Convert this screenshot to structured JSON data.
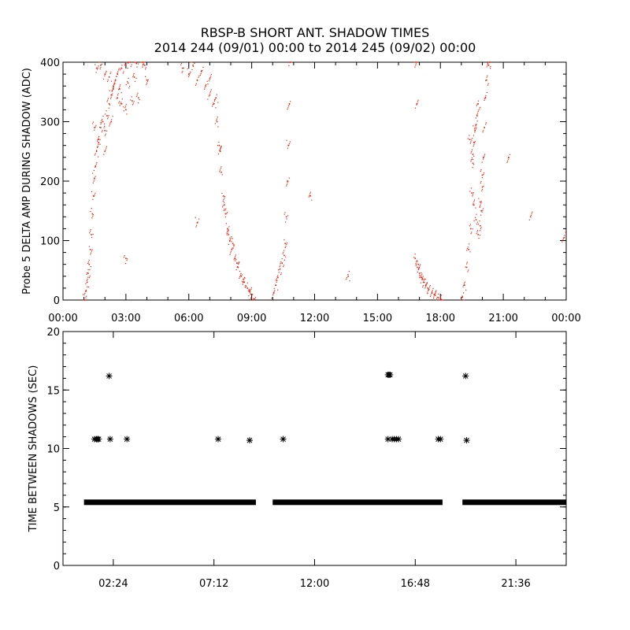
{
  "chart_data": [
    {
      "type": "scatter",
      "title": "RBSP-B SHORT ANT. SHADOW TIMES",
      "subtitle": "2014 244 (09/01) 00:00 to 2014 245 (09/02) 00:00",
      "xlabel": "",
      "ylabel": "Probe 5 DELTA AMP DURING SHADOW (ADC)",
      "x_units": "hours since 2014-09-01 00:00",
      "xlim": [
        0,
        24
      ],
      "ylim": [
        0,
        400
      ],
      "xticks": [
        0,
        3,
        6,
        9,
        12,
        15,
        18,
        21,
        24
      ],
      "xtick_labels": [
        "00:00",
        "03:00",
        "06:00",
        "09:00",
        "12:00",
        "15:00",
        "18:00",
        "21:00",
        "00:00"
      ],
      "yticks": [
        0,
        100,
        200,
        300,
        400
      ],
      "ytick_labels": [
        "0",
        "100",
        "200",
        "300",
        "400"
      ],
      "marker_color": "#e8230f",
      "grid": false,
      "series": [
        {
          "points": [
            [
              1.05,
              0
            ],
            [
              1.1,
              15
            ],
            [
              1.15,
              30
            ],
            [
              1.2,
              45
            ],
            [
              1.25,
              60
            ],
            [
              1.3,
              85
            ],
            [
              1.35,
              110
            ],
            [
              1.4,
              145
            ],
            [
              1.45,
              175
            ],
            [
              1.5,
              205
            ],
            [
              1.55,
              225
            ],
            [
              1.6,
              250
            ],
            [
              1.7,
              270
            ],
            [
              1.8,
              290
            ],
            [
              1.9,
              300
            ],
            [
              2.0,
              285
            ],
            [
              2.1,
              310
            ],
            [
              2.2,
              330
            ],
            [
              2.3,
              345
            ],
            [
              2.4,
              360
            ],
            [
              2.5,
              370
            ],
            [
              2.6,
              380
            ],
            [
              2.8,
              390
            ],
            [
              3.0,
              395
            ],
            [
              3.2,
              400
            ],
            [
              3.5,
              398
            ],
            [
              3.8,
              400
            ],
            [
              1.6,
              390
            ],
            [
              1.8,
              395
            ],
            [
              2.0,
              380
            ],
            [
              2.2,
              375
            ],
            [
              2.4,
              355
            ],
            [
              2.6,
              340
            ],
            [
              2.8,
              330
            ],
            [
              3.0,
              320
            ],
            [
              3.3,
              335
            ],
            [
              3.6,
              340
            ],
            [
              4.0,
              370
            ],
            [
              1.5,
              290
            ],
            [
              1.7,
              265
            ],
            [
              2.0,
              250
            ],
            [
              2.3,
              300
            ],
            [
              2.7,
              355
            ],
            [
              3.1,
              365
            ],
            [
              3.4,
              375
            ],
            [
              3.9,
              395
            ],
            [
              3.0,
              70
            ],
            [
              5.7,
              390
            ],
            [
              6.0,
              380
            ],
            [
              6.4,
              370
            ],
            [
              6.8,
              360
            ],
            [
              7.0,
              345
            ],
            [
              7.2,
              330
            ],
            [
              7.35,
              300
            ],
            [
              7.45,
              260
            ],
            [
              7.55,
              215
            ],
            [
              7.65,
              175
            ],
            [
              7.75,
              145
            ],
            [
              7.85,
              120
            ],
            [
              7.95,
              100
            ],
            [
              8.05,
              85
            ],
            [
              8.2,
              70
            ],
            [
              8.35,
              55
            ],
            [
              8.5,
              40
            ],
            [
              8.65,
              30
            ],
            [
              8.8,
              20
            ],
            [
              8.95,
              10
            ],
            [
              9.1,
              2
            ],
            [
              6.2,
              395
            ],
            [
              6.6,
              385
            ],
            [
              7.0,
              372
            ],
            [
              7.3,
              340
            ],
            [
              7.5,
              250
            ],
            [
              7.7,
              160
            ],
            [
              7.9,
              110
            ],
            [
              8.1,
              95
            ],
            [
              8.3,
              62
            ],
            [
              8.6,
              35
            ],
            [
              8.9,
              15
            ],
            [
              6.4,
              130
            ],
            [
              10.05,
              12
            ],
            [
              10.15,
              25
            ],
            [
              10.25,
              38
            ],
            [
              10.35,
              52
            ],
            [
              10.45,
              62
            ],
            [
              10.55,
              75
            ],
            [
              10.6,
              95
            ],
            [
              10.65,
              140
            ],
            [
              10.7,
              200
            ],
            [
              10.75,
              260
            ],
            [
              10.8,
              330
            ],
            [
              10.85,
              400
            ],
            [
              13.6,
              40
            ],
            [
              11.8,
              175
            ],
            [
              16.8,
              70
            ],
            [
              16.9,
              55
            ],
            [
              17.0,
              45
            ],
            [
              17.1,
              38
            ],
            [
              17.2,
              30
            ],
            [
              17.3,
              25
            ],
            [
              17.45,
              18
            ],
            [
              17.6,
              12
            ],
            [
              17.75,
              8
            ],
            [
              17.9,
              4
            ],
            [
              18.05,
              1
            ],
            [
              16.95,
              60
            ],
            [
              17.15,
              35
            ],
            [
              17.4,
              20
            ],
            [
              17.7,
              9
            ],
            [
              16.85,
              400
            ],
            [
              16.88,
              330
            ],
            [
              19.05,
              5
            ],
            [
              19.15,
              25
            ],
            [
              19.25,
              55
            ],
            [
              19.35,
              85
            ],
            [
              19.45,
              120
            ],
            [
              19.5,
              180
            ],
            [
              19.55,
              230
            ],
            [
              19.6,
              265
            ],
            [
              19.65,
              285
            ],
            [
              19.7,
              295
            ],
            [
              19.75,
              310
            ],
            [
              19.8,
              330
            ],
            [
              19.6,
              160
            ],
            [
              19.7,
              135
            ],
            [
              19.8,
              110
            ],
            [
              19.9,
              125
            ],
            [
              19.95,
              150
            ],
            [
              20.0,
              190
            ],
            [
              20.05,
              240
            ],
            [
              20.1,
              290
            ],
            [
              20.15,
              340
            ],
            [
              20.2,
              370
            ],
            [
              20.3,
              395
            ],
            [
              20.35,
              400
            ],
            [
              19.4,
              270
            ],
            [
              19.55,
              245
            ],
            [
              19.9,
              165
            ],
            [
              20.0,
              210
            ],
            [
              21.25,
              240
            ],
            [
              22.3,
              140
            ],
            [
              23.9,
              105
            ]
          ]
        }
      ]
    },
    {
      "type": "scatter",
      "title": "",
      "xlabel": "",
      "ylabel": "TIME BETWEEN SHADOWS (SEC)",
      "x_units": "hours since 2014-09-01 00:00",
      "xlim": [
        0,
        24
      ],
      "ylim": [
        0,
        20
      ],
      "xticks": [
        2.4,
        7.2,
        12.0,
        16.8,
        21.6
      ],
      "xtick_labels": [
        "02:24",
        "07:12",
        "12:00",
        "16:48",
        "21:36"
      ],
      "yticks": [
        0,
        5,
        10,
        15,
        20
      ],
      "ytick_labels": [
        "0",
        "5",
        "10",
        "15",
        "20"
      ],
      "marker": "asterisk",
      "marker_color": "#000000",
      "grid": false,
      "series": [
        {
          "band": {
            "y": 5.4,
            "x_ranges": [
              [
                1.0,
                9.2
              ],
              [
                10.0,
                18.1
              ],
              [
                19.05,
                24.0
              ]
            ]
          },
          "points": [
            [
              1.5,
              10.8
            ],
            [
              1.6,
              10.8
            ],
            [
              1.65,
              10.8
            ],
            [
              1.7,
              10.8
            ],
            [
              2.2,
              16.2
            ],
            [
              2.25,
              10.8
            ],
            [
              3.05,
              10.8
            ],
            [
              7.4,
              10.8
            ],
            [
              8.9,
              10.7
            ],
            [
              10.5,
              10.8
            ],
            [
              15.5,
              16.3
            ],
            [
              15.55,
              16.3
            ],
            [
              15.6,
              16.3
            ],
            [
              15.5,
              10.8
            ],
            [
              15.7,
              10.8
            ],
            [
              15.8,
              10.8
            ],
            [
              15.9,
              10.8
            ],
            [
              16.0,
              10.8
            ],
            [
              17.9,
              10.8
            ],
            [
              18.0,
              10.8
            ],
            [
              19.2,
              16.2
            ],
            [
              19.25,
              10.7
            ]
          ]
        }
      ]
    }
  ]
}
